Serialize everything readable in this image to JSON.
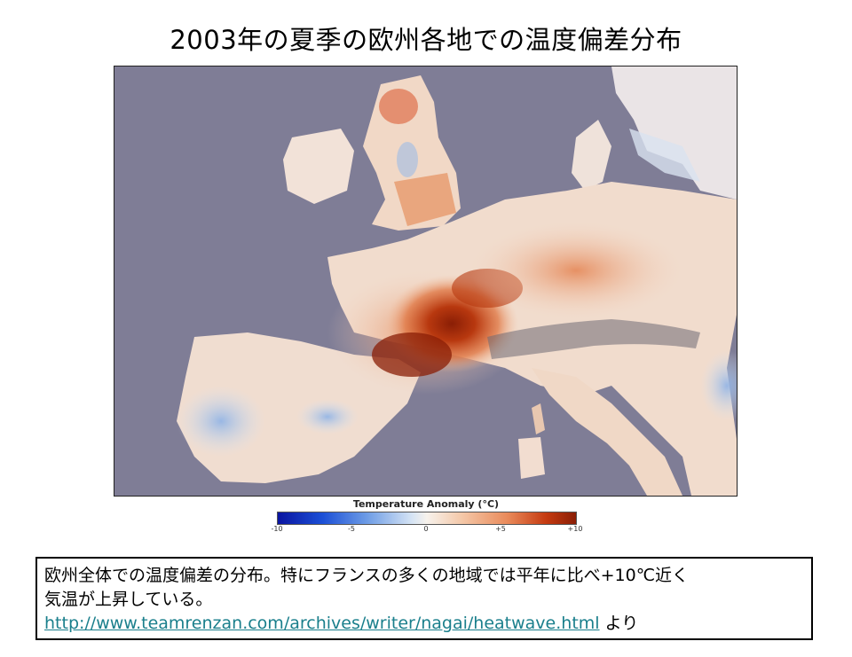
{
  "slide": {
    "title": "2003年の夏季の欧州各地での温度偏差分布"
  },
  "legend": {
    "title": "Temperature Anomaly (°C)",
    "ticks": [
      "-10",
      "-5",
      "0",
      "+5",
      "+10"
    ]
  },
  "caption": {
    "line1": "欧州全体での温度偏差の分布。特にフランスの多くの地域では平年に比べ+10℃近く",
    "line2": "気温が上昇している。",
    "link_text": "http://www.teamrenzan.com/archives/writer/nagai/heatwave.html",
    "suffix": " より"
  },
  "colors": {
    "sea": "#7f7d96",
    "land_light": "#f3e4d8",
    "anomaly_hot": "#8a1e05",
    "link": "#1a7f8c"
  }
}
